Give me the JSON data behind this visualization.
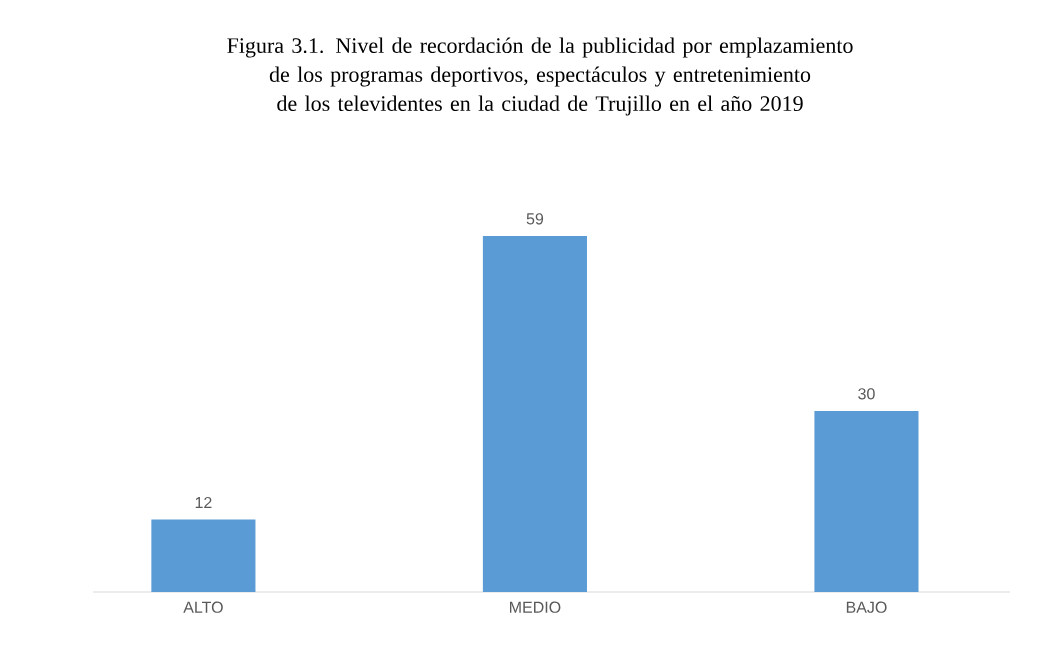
{
  "chart_data": {
    "type": "bar",
    "title": "Figura 3.1. Nivel de recordación de la publicidad por emplazamiento de los programas deportivos, espectáculos y entretenimiento de los televidentes en la ciudad de Trujillo en el año 2019",
    "categories": [
      "ALTO",
      "MEDIO",
      "BAJO"
    ],
    "values": [
      12,
      59,
      30
    ],
    "color": "#5b9bd5",
    "data_labels": true
  }
}
